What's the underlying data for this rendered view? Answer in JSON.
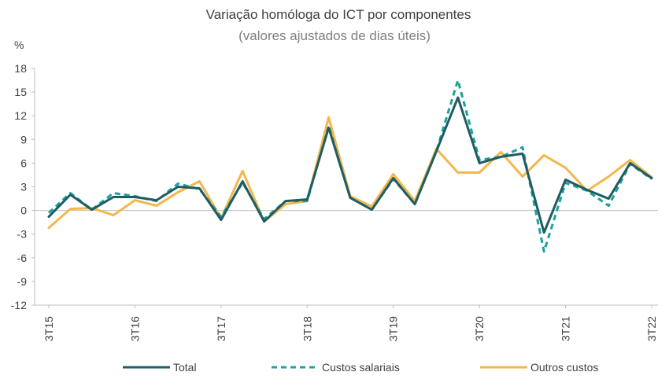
{
  "chart_data": {
    "type": "line",
    "title": "Variação homóloga do ICT por componentes",
    "subtitle": "(valores ajustados de dias úteis)",
    "ylabel": "%",
    "ylim": [
      -12,
      18
    ],
    "yticks": [
      18,
      15,
      12,
      9,
      6,
      3,
      0,
      -3,
      -6,
      -9,
      -12
    ],
    "x": [
      "3T15",
      "4T15",
      "1T16",
      "2T16",
      "3T16",
      "4T16",
      "1T17",
      "2T17",
      "3T17",
      "4T17",
      "1T18",
      "2T18",
      "3T18",
      "4T18",
      "1T19",
      "2T19",
      "3T19",
      "4T19",
      "1T20",
      "2T20",
      "3T20",
      "4T20",
      "1T21",
      "2T21",
      "3T21",
      "4T21",
      "1T22",
      "2T22",
      "3T22"
    ],
    "xtick_labels": [
      "3T15",
      "3T16",
      "3T17",
      "3T18",
      "3T19",
      "3T20",
      "3T21",
      "3T22"
    ],
    "series": [
      {
        "name": "Outros custos",
        "color": "#f2b84b",
        "style": "solid",
        "values": [
          -2.2,
          0.2,
          0.3,
          -0.6,
          1.3,
          0.6,
          2.3,
          3.7,
          -1.0,
          5.0,
          -1.4,
          0.8,
          1.2,
          11.8,
          1.8,
          0.5,
          4.6,
          1.2,
          7.8,
          4.8,
          4.8,
          7.4,
          4.3,
          7.0,
          5.4,
          2.5,
          4.3,
          6.4,
          4.2
        ]
      },
      {
        "name": "Custos salariais",
        "color": "#1aa39a",
        "style": "dashed",
        "values": [
          -0.3,
          2.2,
          0.1,
          2.2,
          1.8,
          1.2,
          3.4,
          2.7,
          -0.8,
          3.5,
          -1.1,
          1.2,
          1.2,
          10.7,
          1.6,
          0.1,
          4.0,
          0.8,
          7.5,
          16.5,
          6.4,
          6.8,
          8.0,
          -5.2,
          3.5,
          2.5,
          0.6,
          5.9,
          4.0
        ]
      },
      {
        "name": "Total",
        "color": "#1f5c63",
        "style": "solid",
        "values": [
          -0.8,
          2.0,
          0.1,
          1.7,
          1.7,
          1.3,
          3.0,
          2.8,
          -1.2,
          3.7,
          -1.4,
          1.2,
          1.4,
          10.5,
          1.6,
          0.1,
          4.1,
          0.8,
          7.5,
          14.3,
          6.0,
          6.8,
          7.2,
          -2.8,
          3.9,
          2.6,
          1.5,
          6.0,
          4.1
        ]
      }
    ],
    "legend": {
      "position": "bottom",
      "items": [
        {
          "name": "Total",
          "color": "#1f5c63",
          "style": "solid"
        },
        {
          "name": "Custos salariais",
          "color": "#1aa39a",
          "style": "dashed"
        },
        {
          "name": "Outros custos",
          "color": "#f2b84b",
          "style": "solid"
        }
      ]
    },
    "grid": false
  }
}
